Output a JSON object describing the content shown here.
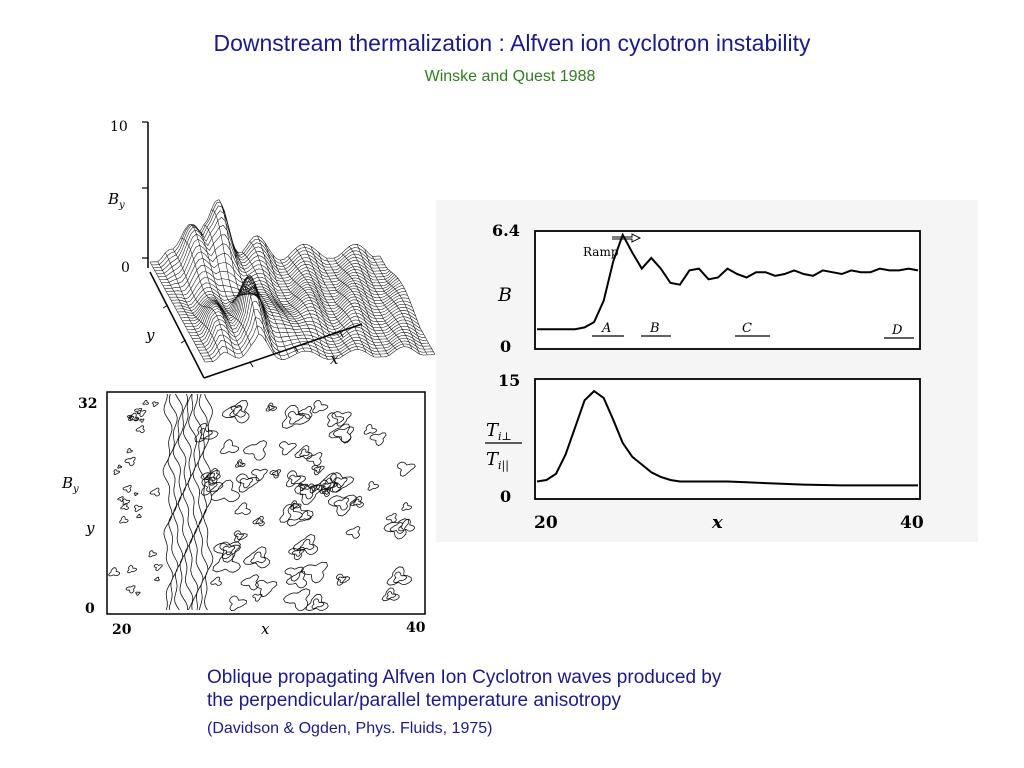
{
  "slide": {
    "title": "Downstream thermalization :  Alfven ion cyclotron instability",
    "subtitle": "Winske and Quest  1988",
    "caption_line1": "Oblique propagating Alfven Ion Cyclotron waves produced by",
    "caption_line2": "the perpendicular/parallel temperature anisotropy",
    "citation": "(Davidson & Ogden, Phys. Fluids, 1975)"
  },
  "surface_plot": {
    "z_top": "10",
    "z_zero": "0",
    "z_label": "B",
    "z_label_sub": "y",
    "y_label": "y",
    "x_label": "x"
  },
  "contour_plot": {
    "y_top": "32",
    "y_zero": "0",
    "label_b": "B",
    "label_b_sub": "y",
    "y_label": "y",
    "x_start": "20",
    "x_end": "40",
    "x_label": "x"
  },
  "chart_data": [
    {
      "type": "line",
      "ylabel": "B",
      "ytick_top": "6.4",
      "ytick_zero": "0",
      "ylim": [
        0,
        6.4
      ],
      "xlim": [
        20,
        40
      ],
      "x": [
        20,
        21,
        22,
        22.5,
        23,
        23.5,
        24,
        24.5,
        25,
        25.5,
        26,
        26.5,
        27,
        27.5,
        28,
        28.5,
        29,
        29.5,
        30,
        30.5,
        31,
        31.5,
        32,
        32.5,
        33,
        33.5,
        34,
        34.5,
        35,
        35.5,
        36,
        36.5,
        37,
        37.5,
        38,
        38.5,
        39,
        39.5,
        40
      ],
      "y": [
        1.0,
        1.0,
        1.0,
        1.1,
        1.4,
        2.6,
        4.8,
        6.3,
        5.3,
        4.4,
        5.0,
        4.4,
        3.6,
        3.5,
        4.3,
        4.4,
        3.8,
        3.9,
        4.4,
        4.1,
        3.9,
        4.2,
        4.2,
        4.0,
        4.1,
        4.3,
        4.1,
        4.0,
        4.3,
        4.2,
        4.1,
        4.3,
        4.2,
        4.2,
        4.4,
        4.3,
        4.3,
        4.4,
        4.3
      ],
      "annotations": {
        "ramp": "Ramp",
        "region_a": "A",
        "region_b": "B",
        "region_c": "C",
        "region_d": "D"
      }
    },
    {
      "type": "line",
      "ylabel_num": "T",
      "ylabel_num_sub": "i⊥",
      "ylabel_den": "T",
      "ylabel_den_sub": "i||",
      "ytick_top": "15",
      "ytick_zero": "0",
      "ylim": [
        0,
        15
      ],
      "xlim": [
        20,
        40
      ],
      "xlabel": "x",
      "xtick_start": "20",
      "xtick_end": "40",
      "x": [
        20,
        20.5,
        21,
        21.5,
        22,
        22.5,
        23,
        23.5,
        24,
        24.5,
        25,
        25.5,
        26,
        26.5,
        27,
        27.5,
        28,
        28.5,
        29,
        30,
        31,
        32,
        33,
        34,
        36,
        38,
        40
      ],
      "y": [
        2.0,
        2.2,
        3.0,
        5.5,
        9.0,
        12.5,
        13.7,
        12.8,
        10.0,
        7.0,
        5.2,
        4.2,
        3.2,
        2.6,
        2.2,
        2.0,
        2.0,
        2.0,
        2.0,
        2.0,
        1.9,
        1.8,
        1.7,
        1.6,
        1.5,
        1.5,
        1.5
      ]
    }
  ]
}
